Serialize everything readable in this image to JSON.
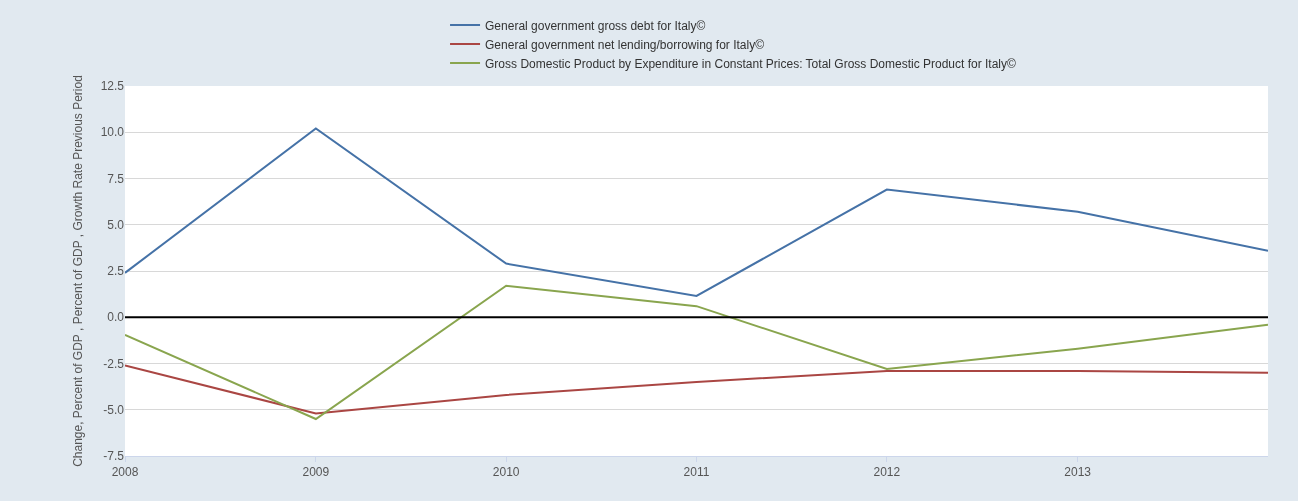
{
  "chart_data": {
    "type": "line",
    "ylabel": "Change, Percent of GDP , Percent of GDP , Growth Rate Previous Period",
    "x": [
      "2008",
      "2009",
      "2010",
      "2011",
      "2012",
      "2013",
      "2014"
    ],
    "xlim": [
      "2008",
      "2014"
    ],
    "xticks": [
      {
        "value": "2008",
        "label": "2008"
      },
      {
        "value": "2009",
        "label": "2009"
      },
      {
        "value": "2010",
        "label": "2010"
      },
      {
        "value": "2011",
        "label": "2011"
      },
      {
        "value": "2012",
        "label": "2012"
      },
      {
        "value": "2013",
        "label": "2013"
      }
    ],
    "ylim": [
      -7.5,
      12.5
    ],
    "yticks": [
      {
        "value": -7.5,
        "label": "-7.5"
      },
      {
        "value": -5,
        "label": "-5.0"
      },
      {
        "value": -2.5,
        "label": "-2.5"
      },
      {
        "value": 0,
        "label": "0.0"
      },
      {
        "value": 2.5,
        "label": "2.5"
      },
      {
        "value": 5,
        "label": "5.0"
      },
      {
        "value": 7.5,
        "label": "7.5"
      },
      {
        "value": 10,
        "label": "10.0"
      },
      {
        "value": 12.5,
        "label": "12.5"
      }
    ],
    "series": [
      {
        "name": "General government gross debt for Italy©",
        "color": "#4572a7",
        "values": [
          2.4,
          10.2,
          2.9,
          1.15,
          6.9,
          5.7,
          3.6
        ]
      },
      {
        "name": "General government net lending/borrowing for Italy©",
        "color": "#aa4643",
        "values": [
          -2.6,
          -5.2,
          -4.2,
          -3.5,
          -2.9,
          -2.9,
          -3.0
        ]
      },
      {
        "name": "Gross Domestic Product by Expenditure in Constant Prices: Total Gross Domestic Product for Italy©",
        "color": "#89a54e",
        "values": [
          -0.95,
          -5.5,
          1.7,
          0.6,
          -2.8,
          -1.7,
          -0.4
        ]
      }
    ],
    "ref_lines": [
      {
        "axis": "y",
        "value": 0,
        "color": "#000000"
      }
    ],
    "grid": "y",
    "legend": "top",
    "marker": "none",
    "line_style": "solid"
  }
}
